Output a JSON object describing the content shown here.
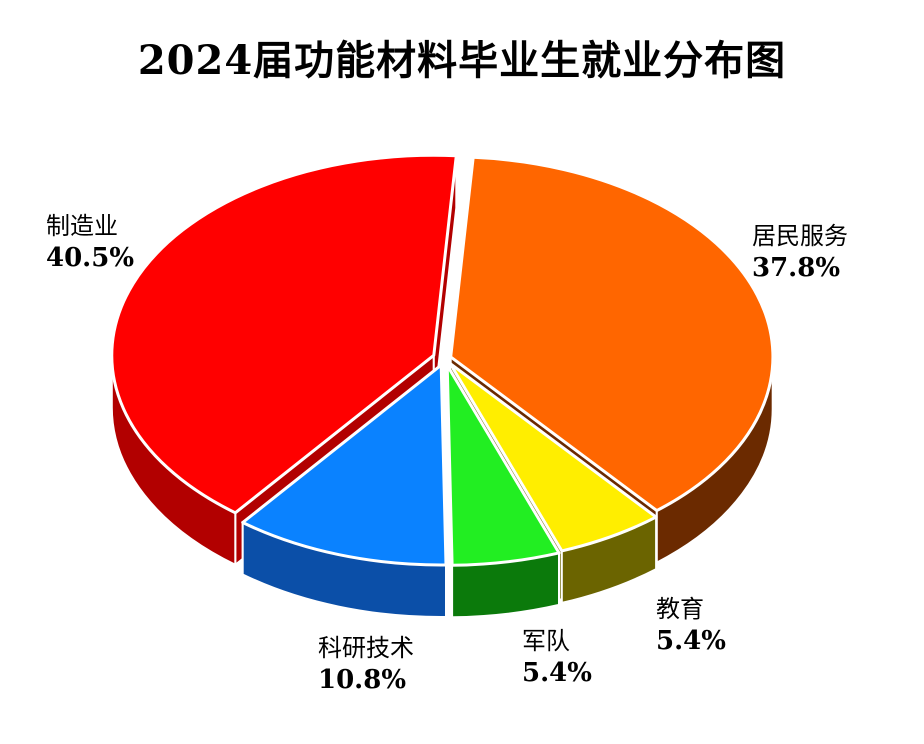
{
  "chart_data": {
    "type": "pie",
    "title": "2024届功能材料毕业生就业分布图",
    "slices": [
      {
        "name": "居民服务",
        "value": 37.8,
        "label": "37.8%",
        "top_color": "#FF6600",
        "side_color": "#6B2A00"
      },
      {
        "name": "教育",
        "value": 5.4,
        "label": "5.4%",
        "top_color": "#FFEE00",
        "side_color": "#6B6400"
      },
      {
        "name": "军队",
        "value": 5.4,
        "label": "5.4%",
        "top_color": "#22EE22",
        "side_color": "#0B7A0B"
      },
      {
        "name": "科研技术",
        "value": 10.8,
        "label": "10.8%",
        "top_color": "#0A82FF",
        "side_color": "#0B4FA8"
      },
      {
        "name": "制造业",
        "value": 40.5,
        "label": "40.5%",
        "top_color": "#FF0000",
        "side_color": "#B20000"
      }
    ],
    "style": "3d-exploded"
  }
}
